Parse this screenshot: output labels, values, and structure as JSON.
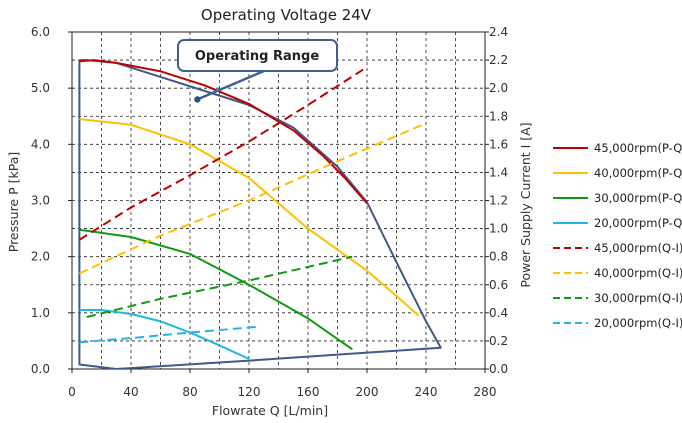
{
  "chart_data": {
    "type": "line",
    "title": "Operating Voltage 24V",
    "xlabel": "Flowrate Q [L/min]",
    "ylabel": "Pressure P [kPa]",
    "y2label": "Power Supply Current I [A]",
    "xlim": [
      0,
      280
    ],
    "ylim": [
      0,
      6
    ],
    "y2lim": [
      0,
      2.4
    ],
    "xticks": [
      "0",
      "40",
      "80",
      "120",
      "160",
      "200",
      "240",
      "280"
    ],
    "yticks": [
      "0.0",
      "1.0",
      "2.0",
      "3.0",
      "4.0",
      "5.0",
      "6.0"
    ],
    "y2ticks": [
      "0.0",
      "0.2",
      "0.4",
      "0.6",
      "0.8",
      "1.0",
      "1.2",
      "1.4",
      "1.6",
      "1.8",
      "2.0",
      "2.2",
      "2.4"
    ],
    "grid": true,
    "legend_position": "right",
    "annotation": {
      "text": "Operating Range",
      "point_x": 85,
      "point_y": 4.8
    },
    "operating_range": {
      "x": [
        5,
        10,
        30,
        60,
        90,
        120,
        150,
        180,
        200,
        220,
        240,
        250,
        120,
        30,
        5,
        5
      ],
      "y": [
        5.5,
        5.5,
        5.45,
        5.2,
        4.95,
        4.7,
        4.3,
        3.6,
        2.97,
        1.9,
        0.85,
        0.38,
        0.15,
        0.0,
        0.08,
        5.5
      ]
    },
    "series": [
      {
        "name": "45,000rpm(P-Q)",
        "axis": "left",
        "color": "#c00000",
        "dash": false,
        "x": [
          5,
          15,
          30,
          60,
          90,
          120,
          150,
          170,
          185,
          200
        ],
        "y": [
          5.48,
          5.5,
          5.45,
          5.3,
          5.05,
          4.72,
          4.25,
          3.8,
          3.4,
          2.95
        ]
      },
      {
        "name": "40,000rpm(P-Q)",
        "axis": "left",
        "color": "#ffc000",
        "dash": false,
        "x": [
          5,
          40,
          80,
          120,
          160,
          200,
          220,
          235
        ],
        "y": [
          4.45,
          4.35,
          4.0,
          3.4,
          2.5,
          1.75,
          1.3,
          0.95
        ]
      },
      {
        "name": "30,000rpm(P-Q)",
        "axis": "left",
        "color": "#119911",
        "dash": false,
        "x": [
          5,
          40,
          80,
          120,
          160,
          190
        ],
        "y": [
          2.48,
          2.35,
          2.05,
          1.5,
          0.9,
          0.35
        ]
      },
      {
        "name": "20,000rpm(P-Q)",
        "axis": "left",
        "color": "#1fb6e3",
        "dash": false,
        "x": [
          5,
          20,
          40,
          60,
          80,
          100,
          120
        ],
        "y": [
          1.05,
          1.05,
          0.98,
          0.85,
          0.65,
          0.42,
          0.18
        ]
      },
      {
        "name": "45,000rpm(Q-I)",
        "axis": "right",
        "color": "#c00000",
        "dash": true,
        "x": [
          5,
          40,
          80,
          120,
          160,
          200
        ],
        "y": [
          0.92,
          1.15,
          1.38,
          1.62,
          1.88,
          2.15
        ]
      },
      {
        "name": "40,000rpm(Q-I)",
        "axis": "right",
        "color": "#ffc000",
        "dash": true,
        "x": [
          5,
          60,
          120,
          180,
          240
        ],
        "y": [
          0.68,
          0.95,
          1.2,
          1.48,
          1.75
        ]
      },
      {
        "name": "30,000rpm(Q-I)",
        "axis": "right",
        "color": "#119911",
        "dash": true,
        "x": [
          10,
          60,
          120,
          190
        ],
        "y": [
          0.37,
          0.5,
          0.63,
          0.8
        ]
      },
      {
        "name": "20,000rpm(Q-I)",
        "axis": "right",
        "color": "#1fb6e3",
        "dash": true,
        "x": [
          5,
          40,
          80,
          125
        ],
        "y": [
          0.19,
          0.22,
          0.26,
          0.3
        ]
      }
    ]
  }
}
